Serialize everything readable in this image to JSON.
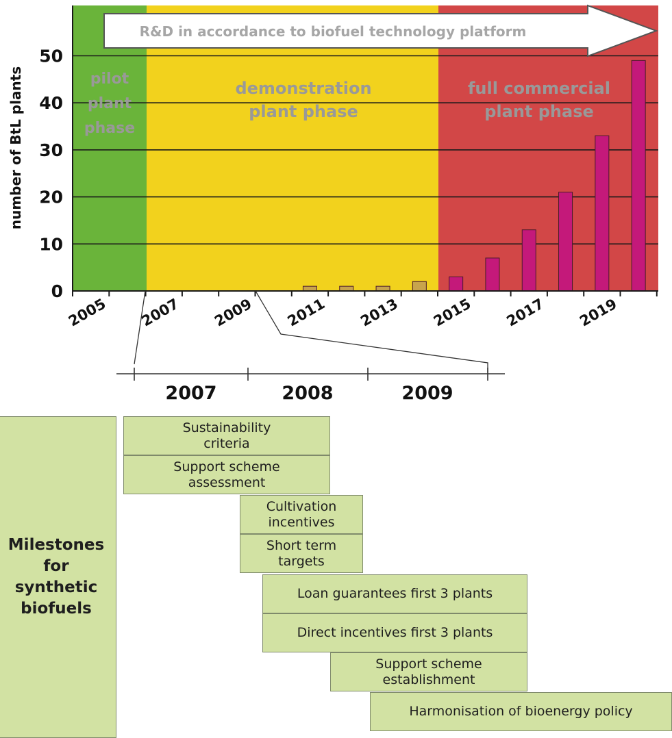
{
  "chart_data": {
    "type": "bar",
    "ylabel": "number of BtL plants",
    "x_tick_labels": [
      "2005",
      "2007",
      "2009",
      "2011",
      "2013",
      "2015",
      "2017",
      "2019"
    ],
    "yticks": [
      "0",
      "10",
      "20",
      "30",
      "40",
      "50"
    ],
    "ylim": [
      0,
      58
    ],
    "grid": true,
    "banner": "R&D in accordance to biofuel technology platform",
    "phases": [
      {
        "name": "pilot plant phase",
        "lines": [
          "pilot",
          "plant",
          "phase"
        ],
        "color": "#6ab43a"
      },
      {
        "name": "demonstration plant phase",
        "lines": [
          "demonstration",
          "plant phase"
        ],
        "color": "#f2d21d"
      },
      {
        "name": "full commercial plant phase",
        "lines": [
          "full commercial",
          "plant phase"
        ],
        "color": "#d24747"
      }
    ],
    "bars": [
      {
        "year": 2011,
        "value": 1,
        "color": "#c8a44c"
      },
      {
        "year": 2012,
        "value": 1,
        "color": "#c8a44c"
      },
      {
        "year": 2013,
        "value": 1,
        "color": "#c8a44c"
      },
      {
        "year": 2014,
        "value": 2,
        "color": "#c8a44c"
      },
      {
        "year": 2015,
        "value": 3,
        "color": "#c4197a"
      },
      {
        "year": 2016,
        "value": 7,
        "color": "#c4197a"
      },
      {
        "year": 2017,
        "value": 13,
        "color": "#c4197a"
      },
      {
        "year": 2018,
        "value": 21,
        "color": "#c4197a"
      },
      {
        "year": 2019,
        "value": 33,
        "color": "#c4197a"
      },
      {
        "year": 2020,
        "value": 49,
        "color": "#c4197a"
      }
    ],
    "zoom_years": [
      "2007",
      "2008",
      "2009"
    ]
  },
  "milestones": {
    "title": "Milestones for synthetic biofuels",
    "title_lines": [
      "Milestones",
      "for",
      "synthetic",
      "biofuels"
    ],
    "items": [
      {
        "label": "Sustainability criteria",
        "lines": [
          "Sustainability",
          "criteria"
        ]
      },
      {
        "label": "Support scheme assessment",
        "lines": [
          "Support scheme",
          "assessment"
        ]
      },
      {
        "label": "Cultivation incentives",
        "lines": [
          "Cultivation",
          "incentives"
        ]
      },
      {
        "label": "Short term targets",
        "lines": [
          "Short term",
          "targets"
        ]
      },
      {
        "label": "Loan guarantees first 3 plants",
        "lines": [
          "Loan guarantees first 3 plants"
        ]
      },
      {
        "label": "Direct incentives first 3 plants",
        "lines": [
          "Direct incentives first 3 plants"
        ]
      },
      {
        "label": "Support scheme establishment",
        "lines": [
          "Support scheme",
          "establishment"
        ]
      },
      {
        "label": "Harmonisation of bioenergy policy",
        "lines": [
          "Harmonisation of bioenergy policy"
        ]
      }
    ],
    "colors": {
      "box_fill": "#d2e2a3",
      "box_border": "#7f8a6b"
    }
  }
}
